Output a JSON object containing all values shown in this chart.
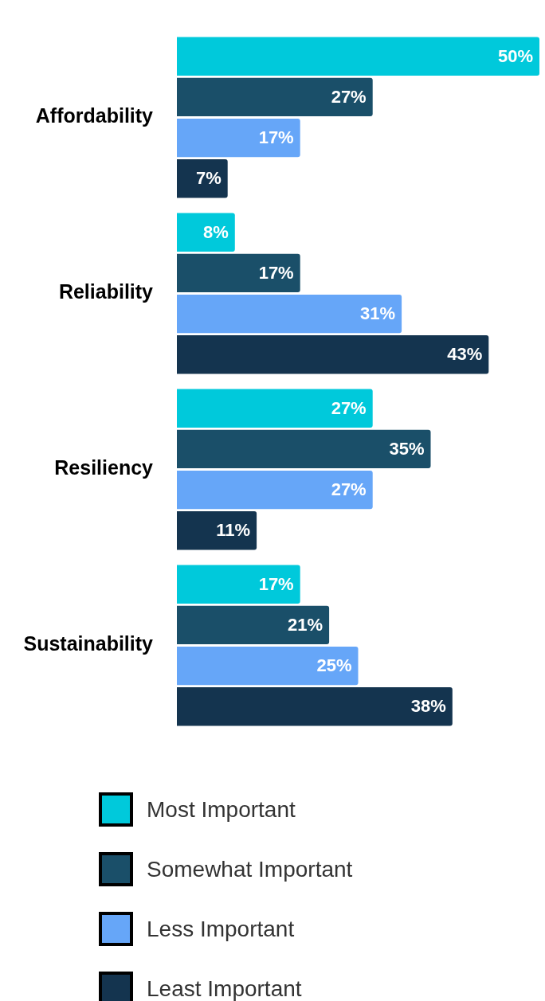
{
  "chart_data": {
    "type": "bar",
    "orientation": "horizontal",
    "categories": [
      "Affordability",
      "Reliability",
      "Resiliency",
      "Sustainability"
    ],
    "series": [
      {
        "name": "Most Important",
        "color": "#00c9db",
        "values": [
          50,
          8,
          27,
          17
        ],
        "value_labels": [
          "50%",
          "8%",
          "27%",
          "17%"
        ]
      },
      {
        "name": "Somewhat Important",
        "color": "#1a4f69",
        "values": [
          27,
          17,
          35,
          21
        ],
        "value_labels": [
          "27%",
          "17%",
          "35%",
          "21%"
        ]
      },
      {
        "name": "Less Important",
        "color": "#66a6f8",
        "values": [
          17,
          31,
          27,
          25
        ],
        "value_labels": [
          "17%",
          "31%",
          "27%",
          "25%"
        ]
      },
      {
        "name": "Least Important",
        "color": "#14344f",
        "values": [
          7,
          43,
          11,
          38
        ],
        "value_labels": [
          "7%",
          "43%",
          "11%",
          "38%"
        ]
      }
    ],
    "xlim": [
      0,
      50
    ],
    "tick_labels": "y",
    "legend": "bottom"
  }
}
